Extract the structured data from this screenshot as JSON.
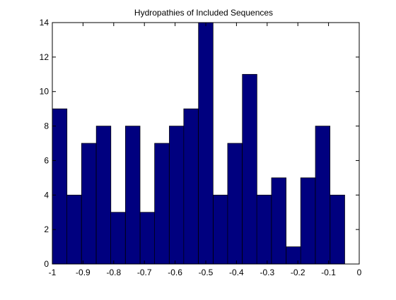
{
  "chart_data": {
    "type": "bar",
    "title": "Hydropathies of Included Sequences",
    "xlabel": "",
    "ylabel": "",
    "xlim": [
      -1,
      0
    ],
    "ylim": [
      0,
      14
    ],
    "bin_width": 0.0476,
    "bin_centers": [
      -0.976,
      -0.929,
      -0.881,
      -0.833,
      -0.786,
      -0.738,
      -0.69,
      -0.643,
      -0.595,
      -0.548,
      -0.5,
      -0.452,
      -0.405,
      -0.357,
      -0.31,
      -0.262,
      -0.214,
      -0.167,
      -0.119,
      -0.071,
      -0.024
    ],
    "values": [
      9,
      4,
      7,
      8,
      3,
      8,
      3,
      7,
      8,
      9,
      14,
      4,
      7,
      11,
      4,
      5,
      1,
      5,
      8,
      4,
      0
    ],
    "x_ticks": [
      -1,
      -0.9,
      -0.8,
      -0.7,
      -0.6,
      -0.5,
      -0.4,
      -0.3,
      -0.2,
      -0.1,
      0
    ],
    "x_tick_labels": [
      "-1",
      "-0.9",
      "-0.8",
      "-0.7",
      "-0.6",
      "-0.5",
      "-0.4",
      "-0.3",
      "-0.2",
      "-0.1",
      "0"
    ],
    "y_ticks": [
      0,
      2,
      4,
      6,
      8,
      10,
      12,
      14
    ],
    "y_tick_labels": [
      "0",
      "2",
      "4",
      "6",
      "8",
      "10",
      "12",
      "14"
    ],
    "grid": false,
    "legend": "none",
    "colors": {
      "bar_fill": "#00007f",
      "bar_edge": "#000000",
      "axes": "#000000",
      "background": "#ffffff"
    }
  }
}
